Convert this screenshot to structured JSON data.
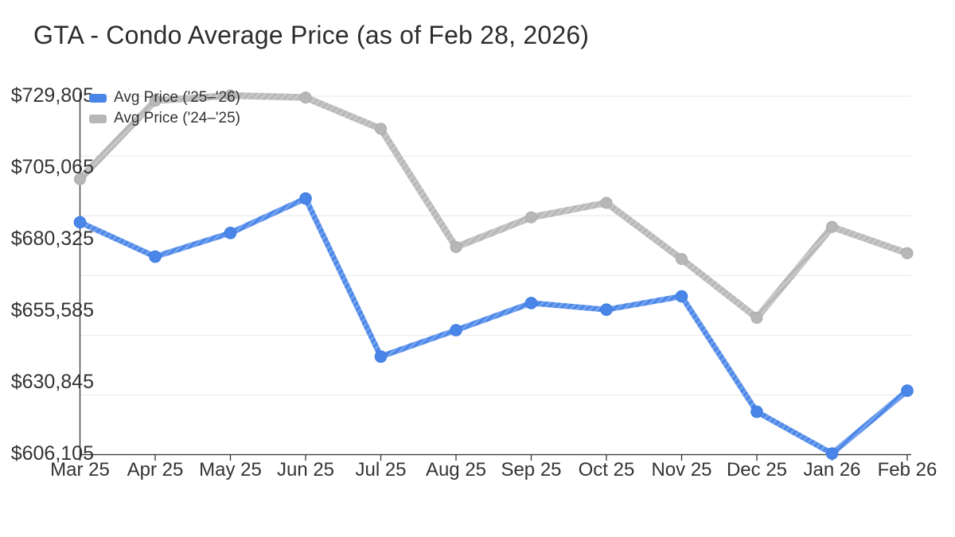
{
  "title": "GTA - Condo Average Price (as of Feb 28, 2026)",
  "legend": [
    {
      "label": "Avg Price ('25–'26)",
      "color": "#4a86e8"
    },
    {
      "label": "Avg Price ('24–'25)",
      "color": "#b7b7b7"
    }
  ],
  "chart_data": {
    "type": "line",
    "title": "GTA - Condo Average Price (as of Feb 28, 2026)",
    "categories": [
      "Mar 25",
      "Apr 25",
      "May 25",
      "Jun 25",
      "Jul 25",
      "Aug 25",
      "Sep 25",
      "Oct 25",
      "Nov 25",
      "Dec 25",
      "Jan 26",
      "Feb 26"
    ],
    "series": [
      {
        "name": "Avg Price ('25–'26)",
        "color": "#4a86e8",
        "marker_color": "#3d7be0",
        "values": [
          686000,
          674100,
          682300,
          694200,
          639600,
          648700,
          658100,
          655800,
          660400,
          620500,
          606105,
          627800
        ]
      },
      {
        "name": "Avg Price ('24–'25)",
        "color": "#b7b7b7",
        "marker_color": "#aaaaaa",
        "values": [
          700900,
          728000,
          729805,
          729100,
          718300,
          677400,
          687700,
          692700,
          673300,
          653000,
          684400,
          675300
        ]
      }
    ],
    "y_axis": {
      "min": 606105,
      "max": 729805,
      "tick_labels": [
        "$729,805",
        "$705,065",
        "$680,325",
        "$655,585",
        "$630,845",
        "$606,105"
      ],
      "tick_values": [
        729805,
        705065,
        680325,
        655585,
        630845,
        606105
      ]
    },
    "x_axis": {
      "tick_labels": [
        "Mar 25",
        "Apr 25",
        "May 25",
        "Jun 25",
        "Jul 25",
        "Aug 25",
        "Sep 25",
        "Oct 25",
        "Nov 25",
        "Dec 25",
        "Jan 26",
        "Feb 26"
      ]
    },
    "grid": true,
    "gridline_count": 7,
    "legend_position": "top-left-inside"
  },
  "colors": {
    "background": "#ffffff",
    "grid": "#e8e8e8",
    "axis": "#333333",
    "tick_text": "#333333",
    "title_text": "#2b2d2f"
  }
}
